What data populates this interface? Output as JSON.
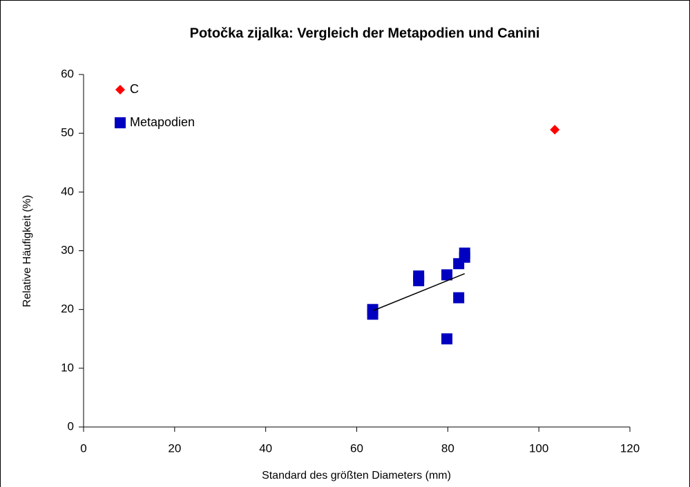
{
  "chart_data": {
    "type": "scatter",
    "title": "Potočka zijalka: Vergleich der Metapodien und Canini",
    "xlabel": "Standard des größten Diameters (mm)",
    "ylabel": "Relative Häufigkeit (%)",
    "xlim": [
      0,
      120
    ],
    "xticks": [
      0,
      20,
      40,
      60,
      80,
      100,
      120
    ],
    "ylim": [
      0,
      60
    ],
    "yticks": [
      0,
      10,
      20,
      30,
      40,
      50,
      60
    ],
    "legend": "top-left",
    "series": [
      {
        "name": "C",
        "color": "#ff0000",
        "marker": "diamond",
        "x": [
          103.5
        ],
        "y": [
          50.6
        ]
      },
      {
        "name": "Metapodien",
        "color": "#0000c0",
        "marker": "square",
        "x": [
          63.5,
          63.5,
          73.6,
          73.6,
          79.8,
          79.8,
          82.4,
          82.4,
          83.7,
          83.7
        ],
        "y": [
          19.2,
          20.0,
          24.9,
          25.7,
          25.9,
          15.0,
          27.8,
          22.0,
          28.9,
          29.6
        ]
      }
    ],
    "trendline": {
      "color": "#000000",
      "x": [
        63.6,
        83.7
      ],
      "y": [
        19.8,
        26.1
      ]
    }
  }
}
